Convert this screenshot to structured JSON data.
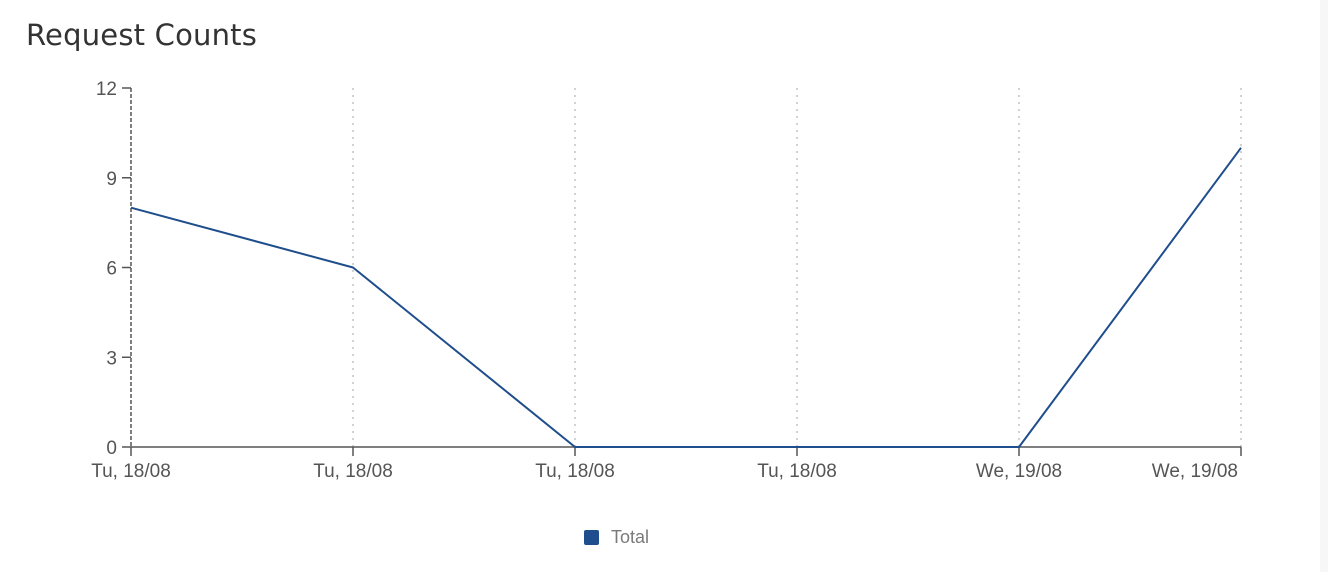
{
  "panel": {
    "title": "Request Counts"
  },
  "chart_data": {
    "type": "line",
    "title": "Request Counts",
    "xlabel": "",
    "ylabel": "",
    "categories": [
      "Tu, 18/08",
      "Tu, 18/08",
      "Tu, 18/08",
      "Tu, 18/08",
      "We, 19/08",
      "We, 19/08"
    ],
    "series": [
      {
        "name": "Total",
        "color": "#1f4e8c",
        "values": [
          8,
          6,
          0,
          0,
          0,
          10
        ]
      }
    ],
    "ylim": [
      0,
      12
    ],
    "yticks": [
      0,
      3,
      6,
      9,
      12
    ],
    "grid": "vertical-dotted",
    "legend": "bottom-center"
  }
}
